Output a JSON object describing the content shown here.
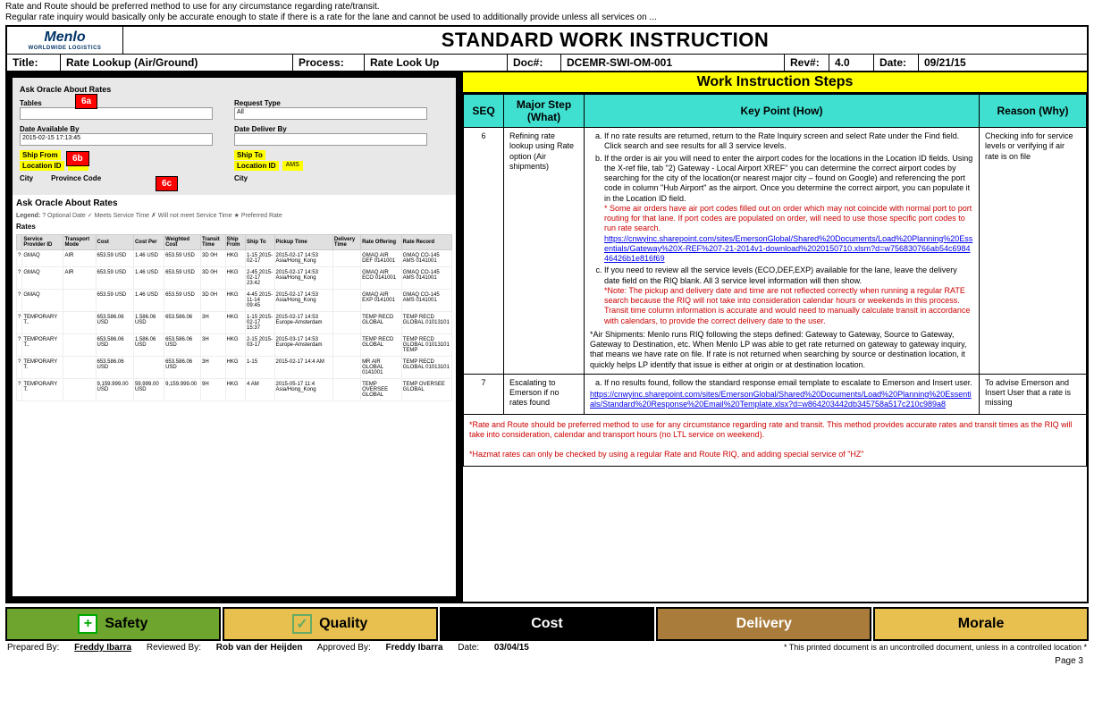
{
  "topNote": {
    "line1": "Rate and Route should be preferred method to use for any circumstance regarding rate/transit.",
    "line2": "Regular rate inquiry would basically only be accurate enough to state if there is a rate for the lane and cannot be used to additionally provide unless all services on ..."
  },
  "logo": {
    "name": "Menlo",
    "sub": "WORLDWIDE LOGISTICS"
  },
  "header": {
    "title": "STANDARD WORK INSTRUCTION"
  },
  "meta": {
    "titleLbl": "Title:",
    "titleVal": "Rate Lookup (Air/Ground)",
    "processLbl": "Process:",
    "processVal": "Rate Look Up",
    "docLbl": "Doc#:",
    "docVal": "DCEMR-SWI-OM-001",
    "revLbl": "Rev#:",
    "revVal": "4.0",
    "dateLbl": "Date:",
    "dateVal": "09/21/15"
  },
  "wis": "Work Instruction Steps",
  "cols": {
    "seq": "SEQ",
    "major": "Major Step (What)",
    "key": "Key Point (How)",
    "reason": "Reason (Why)"
  },
  "callouts": {
    "a": "6a",
    "b": "6b",
    "c": "6c"
  },
  "screenshot": {
    "askTitle": "Ask Oracle About Rates",
    "tabs": "Tables",
    "requestType": "Request Type",
    "all": "All",
    "dateAvail": "Date Available By",
    "dateAvailVal": "2015-02-15 17:13:45",
    "dateDeliver": "Date Deliver By",
    "shipFrom": "Ship From",
    "shipTo": "Ship To",
    "locationId": "Location ID",
    "hkg": "HKG",
    "ams": "AMS",
    "city": "City",
    "provinceCode": "Province Code",
    "ratesTitle": "Ask Oracle About Rates",
    "legendLbl": "Legend:",
    "legend": "? Optional Date   ✓ Meets Service Time   ✗ Will not meet Service Time   ★ Preferred Rate",
    "ratesHdr": "Rates",
    "tblCols": [
      "",
      "Service Provider ID",
      "Transport Mode",
      "Cost",
      "Cost Per",
      "Weighted Cost",
      "Transit Time",
      "Ship From",
      "Ship To",
      "Pickup Time",
      "Delivery Time",
      "Rate Offering",
      "Rate Record"
    ],
    "rows": [
      [
        "?",
        "GMAQ",
        "AIR",
        "653.59 USD",
        "1.46 USD",
        "653.59 USD",
        "3D 0H",
        "HKG",
        "1-15 2015-02-17",
        "2015-02-17 14:53 Asia/Hong_Kong",
        "",
        "GMAQ AIR DEF 0141001",
        "GMAQ CO-145 AMS 0141001"
      ],
      [
        "?",
        "GMAQ",
        "AIR",
        "653.59 USD",
        "1.46 USD",
        "653.59 USD",
        "3D 0H",
        "HKG",
        "2-45 2015-02-17 23:42",
        "2015-02-17 14:53 Asia/Hong_Kong",
        "",
        "GMAQ AIR ECO 0141001",
        "GMAQ CO-145 AMS 0141001"
      ],
      [
        "?",
        "GMAQ",
        "",
        "653.59 USD",
        "1.46 USD",
        "653.59 USD",
        "3D 0H",
        "HKG",
        "4-45 2015-11-14 09:45",
        "2015-02-17 14:53 Asia/Hong_Kong",
        "",
        "GMAQ AIR EXP 0141001",
        "GMAQ CO-145 AMS 0141001"
      ],
      [
        "?",
        "TEMPORARY T..",
        "",
        "653.586.06 USD",
        "1.586.06 USD",
        "653.586.06",
        "3H",
        "HKG",
        "1-15 2015-02-17 15:37",
        "2015-02-17 14:53 Europe-Amsterdam",
        "",
        "TEMP RECD GLOBAL",
        "TEMP RECD GLOBAL 01013101"
      ],
      [
        "?",
        "TEMPORARY T..",
        "",
        "653.586.06 USD",
        "1.586.06 USD",
        "653.586.06 USD",
        "3H",
        "HKG",
        "2-15 2015-03-17",
        "2015-03-17 14:53 Europe-Amsterdam",
        "",
        "TEMP RECD GLOBAL",
        "TEMP RECD GLOBAL 01013101 TEMP"
      ],
      [
        "?",
        "TEMPORARY T.",
        "",
        "653.586.06 USD",
        "",
        "653.586.06 USD",
        "3H",
        "HKG",
        "1-15",
        "2015-02-17 14:4 AM",
        "",
        "MR AIR GLOBAL 0141001",
        "TEMP RECD GLOBAL 01013101"
      ],
      [
        "?",
        "TEMPORARY T.",
        "",
        "9,159.999.00 USD",
        "59,999.00 USD",
        "9,159.999.00",
        "9H",
        "HKG",
        "4 AM",
        "2015-05-17 11:4 Asia/Hong_Kong",
        "",
        "TEMP OVERSEE GLOBAL",
        "TEMP OVERSEE GLOBAL"
      ]
    ]
  },
  "step6": {
    "seq": "6",
    "major": "Refining rate lookup using Rate option (Air shipments)",
    "kp_a": "If no rate results are returned, return to the Rate Inquiry screen and select Rate under the Find field. Click search and see results for all 3 service levels.",
    "kp_b": "If the order is air you will need to enter the airport codes for the locations in the Location ID fields. Using the X-ref file, tab \"2) Gateway - Local Airport XREF\" you can determine the correct airport codes by searching for the city of the location(or nearest major city – found on Google) and referencing the port code in column \"Hub Airport\" as the airport. Once you determine the correct airport, you can populate it in the Location ID field.",
    "kp_b_note": "* Some air orders have air port codes filled out on order which may not coincide with normal port to port routing for that lane. If port codes are populated on order, will need to use those specific port codes to run rate search.",
    "kp_b_link": "https://cnwyinc.sharepoint.com/sites/EmersonGlobal/Shared%20Documents/Load%20Planning%20Essentials/Gateway%20X-REF%207-21-2014v1-download%2020150710.xlsm?d=w756830766ab54c698446426b1e816f69",
    "kp_c": "If you need to review all the service levels (ECO,DEF,EXP) available for the lane, leave the delivery date field on the RIQ blank.  All 3 service level information will then show.",
    "kp_c_note": "*Note: The pickup and delivery date and time are not reflected correctly when running a regular RATE search because the RIQ will not take into consideration calendar hours or weekends in this process. Transit time column information is accurate  and would need to  manually calculate transit in accordance with calendars, to provide the correct delivery date to the user.",
    "kp_air": "*Air Shipments: Menlo runs RIQ following the steps defined: Gateway to Gateway, Source to Gateway, Gateway to Destination, etc. When Menlo LP was able to get rate returned on gateway to gateway inquiry, that means we have rate on file. If rate is not returned when searching by source or destination location, it quickly helps LP identify that issue is either at origin or at destination location.",
    "reason": "Checking info for service levels or verifying if air rate is on file"
  },
  "step7": {
    "seq": "7",
    "major": "Escalating to Emerson if no rates found",
    "kp_a": "If no results found, follow the standard response email template to escalate to Emerson and Insert user.",
    "kp_link": "https://cnwyinc.sharepoint.com/sites/EmersonGlobal/Shared%20Documents/Load%20Planning%20Essentials/Standard%20Response%20Email%20Template.xlsx?d=w864203442db345758a517c210c989a8",
    "reason": "To advise Emerson and Insert User that a rate is missing"
  },
  "notes": {
    "n1": "*Rate and Route should be preferred method to use for any circumstance regarding rate and transit. This method provides accurate rates and transit times as the RIQ will take into consideration, calendar and transport hours (no LTL service on weekend).",
    "n2": "*Hazmat rates can only be checked by using a regular Rate and Route RIQ, and adding special service of \"HZ\""
  },
  "footer": {
    "safety": "Safety",
    "quality": "Quality",
    "cost": "Cost",
    "delivery": "Delivery",
    "morale": "Morale",
    "safetyColor": "#6da52e",
    "qualityColor": "#e8c050",
    "costColor": "#000000",
    "deliveryColor": "#a97c3c",
    "moraleColor": "#e8c050"
  },
  "bottom": {
    "prepLbl": "Prepared By:",
    "prepVal": "Freddy Ibarra",
    "revLbl": "Reviewed By:",
    "revVal": "Rob van der Heijden",
    "appLbl": "Approved By:",
    "appVal": "Freddy Ibarra",
    "dateLbl": "Date:",
    "dateVal": "03/04/15",
    "uncontrolled": "* This printed document is an uncontrolled document, unless in a controlled location *",
    "page": "Page 3"
  }
}
